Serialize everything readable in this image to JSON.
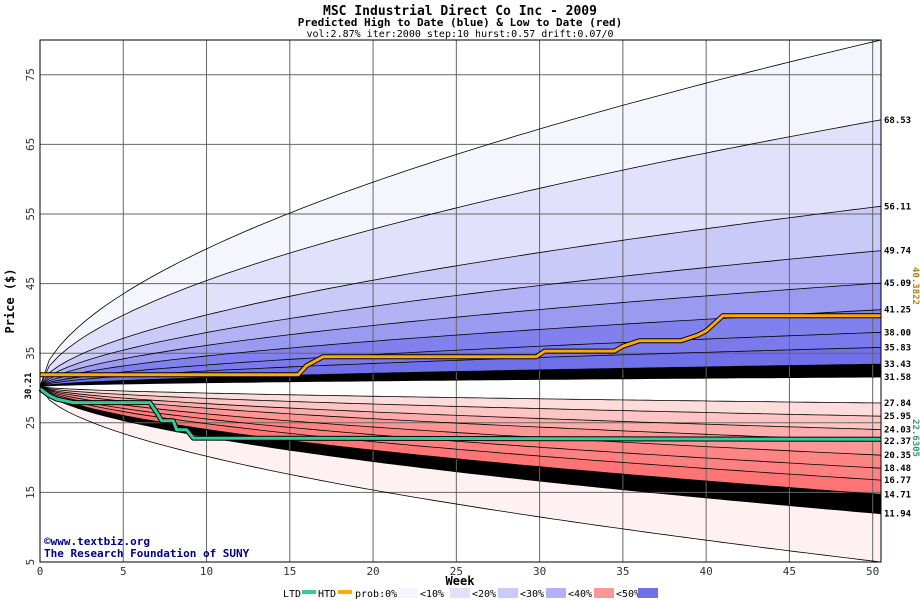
{
  "chart_data": {
    "type": "area",
    "title": "MSC Industrial Direct Co Inc - 2009",
    "subtitle": "Predicted High to Date (blue) &  Low to Date (red)",
    "params": "vol:2.87% iter:2000 step:10 hurst:0.57 drift:0.07/0",
    "xlabel": "Week",
    "ylabel": "Price ($)",
    "xlim": [
      0,
      50.5
    ],
    "ylim": [
      5,
      80
    ],
    "xticks": [
      0,
      5,
      10,
      15,
      20,
      25,
      30,
      35,
      40,
      45,
      50
    ],
    "yticks": [
      5,
      15,
      25,
      35,
      45,
      55,
      65,
      75
    ],
    "start_price": 30.21,
    "start_label": "30.21",
    "upper_end_values": [
      68.53,
      56.11,
      49.74,
      45.09,
      41.25,
      38.0,
      35.83,
      33.43,
      31.58
    ],
    "upper_end_labels": [
      "68.53",
      "56.11",
      "49.74",
      "45.09",
      "41.25",
      "38.00",
      "35.83",
      "33.43",
      "31.58"
    ],
    "lower_end_values": [
      27.84,
      25.95,
      24.03,
      22.37,
      20.35,
      18.48,
      16.77,
      14.71,
      11.94
    ],
    "lower_end_labels": [
      "27.84",
      "25.95",
      "24.03",
      "22.37",
      "20.35",
      "18.48",
      "16.77",
      "14.71",
      "11.94"
    ],
    "envelope_end_upper": 80,
    "envelope_end_lower": 5,
    "htd_series": {
      "name": "HTD",
      "color": "#ffaa00",
      "points": [
        [
          0,
          31.9
        ],
        [
          15.5,
          31.9
        ],
        [
          16,
          33.2
        ],
        [
          17,
          34.5
        ],
        [
          29.8,
          34.5
        ],
        [
          30.3,
          35.3
        ],
        [
          34.5,
          35.3
        ],
        [
          35,
          36.0
        ],
        [
          36,
          36.8
        ],
        [
          38.5,
          36.8
        ],
        [
          39.5,
          37.6
        ],
        [
          40,
          38.2
        ],
        [
          40.5,
          39.3
        ],
        [
          41,
          40.38
        ],
        [
          50.5,
          40.38
        ]
      ],
      "end_label": "40.3822"
    },
    "ltd_series": {
      "name": "LTD",
      "color": "#33cc99",
      "points": [
        [
          0,
          29.9
        ],
        [
          0.5,
          29.0
        ],
        [
          1,
          28.4
        ],
        [
          2,
          27.9
        ],
        [
          6.6,
          27.9
        ],
        [
          7,
          26.5
        ],
        [
          7.3,
          25.3
        ],
        [
          8,
          25.3
        ],
        [
          8.2,
          24.0
        ],
        [
          8.8,
          24.0
        ],
        [
          9.2,
          22.8
        ],
        [
          50.5,
          22.63
        ]
      ],
      "end_label": "22.6305"
    },
    "band_colors": {
      "upper": [
        "#f5f5fe",
        "#e1e1fb",
        "#cacaf8",
        "#b2b2f5",
        "#9a9af1",
        "#8181ed",
        "#7a7aec",
        "#7070e8"
      ],
      "lower": [
        "#fff1f1",
        "#ffdcdc",
        "#ffc4c4",
        "#ffacac",
        "#ff9696",
        "#ff8585",
        "#ff8080",
        "#ff7575"
      ]
    },
    "credit": [
      "©www.textbiz.org",
      "The Research Foundation of SUNY"
    ],
    "legend": {
      "ltd": "LTD",
      "htd": "HTD",
      "prob": "prob:0%",
      "items": [
        "<10%",
        "<20%",
        "<30%",
        "<40%",
        "<50%"
      ]
    }
  }
}
